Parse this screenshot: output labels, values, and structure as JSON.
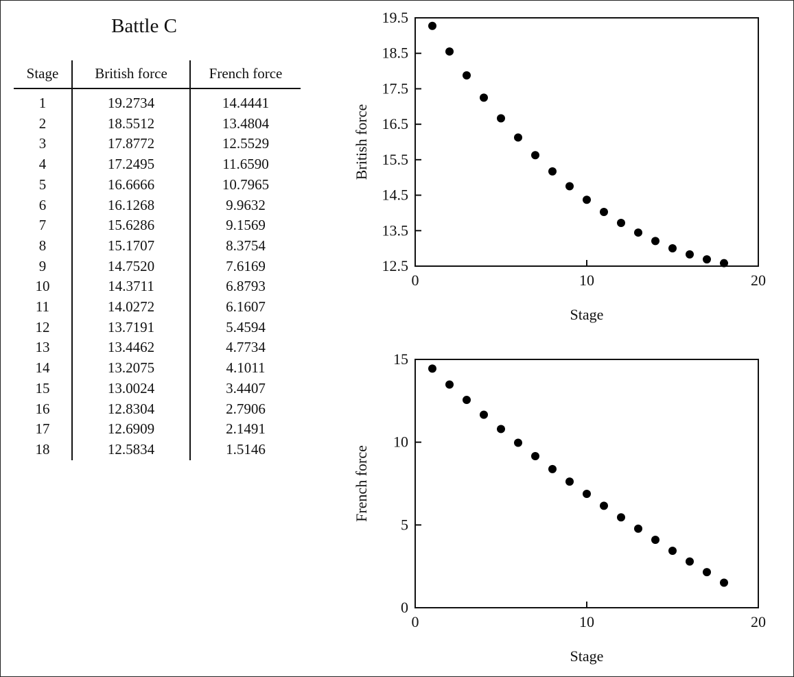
{
  "table": {
    "title": "Battle C",
    "headers": [
      "Stage",
      "British force",
      "French force"
    ],
    "rows": [
      [
        "1",
        "19.2734",
        "14.4441"
      ],
      [
        "2",
        "18.5512",
        "13.4804"
      ],
      [
        "3",
        "17.8772",
        "12.5529"
      ],
      [
        "4",
        "17.2495",
        "11.6590"
      ],
      [
        "5",
        "16.6666",
        "10.7965"
      ],
      [
        "6",
        "16.1268",
        "9.9632"
      ],
      [
        "7",
        "15.6286",
        "9.1569"
      ],
      [
        "8",
        "15.1707",
        "8.3754"
      ],
      [
        "9",
        "14.7520",
        "7.6169"
      ],
      [
        "10",
        "14.3711",
        "6.8793"
      ],
      [
        "11",
        "14.0272",
        "6.1607"
      ],
      [
        "12",
        "13.7191",
        "5.4594"
      ],
      [
        "13",
        "13.4462",
        "4.7734"
      ],
      [
        "14",
        "13.2075",
        "4.1011"
      ],
      [
        "15",
        "13.0024",
        "3.4407"
      ],
      [
        "16",
        "12.8304",
        "2.7906"
      ],
      [
        "17",
        "12.6909",
        "2.1491"
      ],
      [
        "18",
        "12.5834",
        "1.5146"
      ]
    ]
  },
  "chart_data": [
    {
      "type": "scatter",
      "xlabel": "Stage",
      "ylabel": "British force",
      "xlim": [
        0,
        20
      ],
      "ylim": [
        12.5,
        19.5
      ],
      "xticks": [
        0,
        10,
        20
      ],
      "yticks": [
        12.5,
        13.5,
        14.5,
        15.5,
        16.5,
        17.5,
        18.5,
        19.5
      ],
      "xtick_labels": [
        "0",
        "10",
        "20"
      ],
      "ytick_labels": [
        "12.5",
        "13.5",
        "14.5",
        "15.5",
        "16.5",
        "17.5",
        "18.5",
        "19.5"
      ],
      "grid": false,
      "x": [
        1,
        2,
        3,
        4,
        5,
        6,
        7,
        8,
        9,
        10,
        11,
        12,
        13,
        14,
        15,
        16,
        17,
        18
      ],
      "y": [
        19.2734,
        18.5512,
        17.8772,
        17.2495,
        16.6666,
        16.1268,
        15.6286,
        15.1707,
        14.752,
        14.3711,
        14.0272,
        13.7191,
        13.4462,
        13.2075,
        13.0024,
        12.8304,
        12.6909,
        12.5834
      ]
    },
    {
      "type": "scatter",
      "xlabel": "Stage",
      "ylabel": "French force",
      "xlim": [
        0,
        20
      ],
      "ylim": [
        0,
        15
      ],
      "xticks": [
        0,
        10,
        20
      ],
      "yticks": [
        0,
        5,
        10,
        15
      ],
      "xtick_labels": [
        "0",
        "10",
        "20"
      ],
      "ytick_labels": [
        "0",
        "5",
        "10",
        "15"
      ],
      "grid": false,
      "x": [
        1,
        2,
        3,
        4,
        5,
        6,
        7,
        8,
        9,
        10,
        11,
        12,
        13,
        14,
        15,
        16,
        17,
        18
      ],
      "y": [
        14.4441,
        13.4804,
        12.5529,
        11.659,
        10.7965,
        9.9632,
        9.1569,
        8.3754,
        7.6169,
        6.8793,
        6.1607,
        5.4594,
        4.7734,
        4.1011,
        3.4407,
        2.7906,
        2.1491,
        1.5146
      ]
    }
  ]
}
